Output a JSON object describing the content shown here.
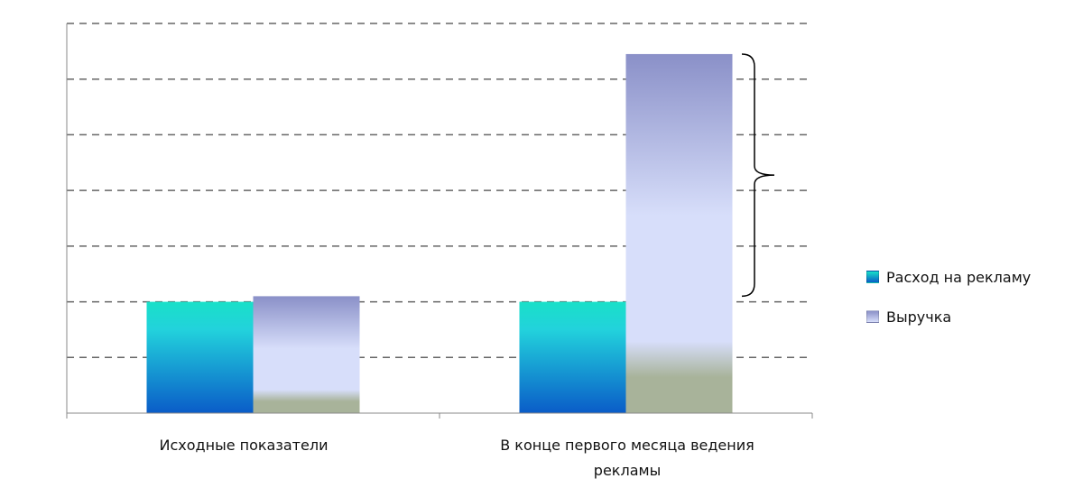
{
  "chart_data": {
    "type": "bar",
    "categories": [
      "Исходные показатели",
      "В конце первого месяца ведения рекламы"
    ],
    "series": [
      {
        "name": "Расход на рекламу",
        "values": [
          2,
          2
        ]
      },
      {
        "name": "Выручка",
        "values": [
          2.1,
          6.45
        ]
      }
    ],
    "ylim": [
      0,
      7
    ],
    "grid": true,
    "legend": "right",
    "annotation": "brace"
  },
  "colors": {
    "series1_top": "#19e0c8",
    "series1_bottom": "#0a5cc8",
    "series2_top": "#8a90c8",
    "series2_bottom": "#d7defa",
    "series2_base": "#a8b39a",
    "grid": "#666666",
    "axis": "#888888"
  }
}
